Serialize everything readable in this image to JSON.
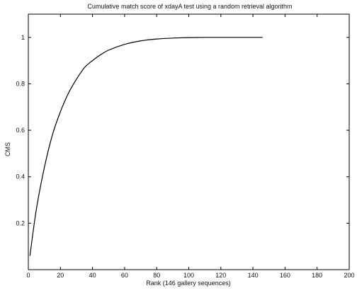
{
  "chart_data": {
    "type": "line",
    "title": "Cumulative match score of xdayA test  using a random retrieval algorithm",
    "xlabel": "Rank (146 gallery sequences)",
    "ylabel": "CMS",
    "xlim": [
      0,
      200
    ],
    "ylim": [
      0,
      1.1
    ],
    "xticks": [
      0,
      20,
      40,
      60,
      80,
      100,
      120,
      140,
      160,
      180,
      200
    ],
    "yticks": [
      0.2,
      0.4,
      0.6,
      0.8,
      1
    ],
    "xtick_labels": [
      "0",
      "20",
      "40",
      "60",
      "80",
      "100",
      "120",
      "140",
      "160",
      "180",
      "200"
    ],
    "ytick_labels": [
      "0.2",
      "0.4",
      "0.6",
      "0.8",
      "1"
    ],
    "grid": false,
    "series": [
      {
        "x": [
          1,
          5,
          10,
          15,
          20,
          25,
          30,
          35,
          40,
          45,
          50,
          60,
          70,
          80,
          90,
          100,
          110,
          120,
          130,
          140,
          146
        ],
        "y": [
          0.06,
          0.26,
          0.44,
          0.58,
          0.68,
          0.76,
          0.82,
          0.87,
          0.9,
          0.925,
          0.945,
          0.97,
          0.985,
          0.993,
          0.997,
          0.999,
          1.0,
          1.0,
          1.0,
          1.0,
          1.0
        ]
      }
    ]
  }
}
